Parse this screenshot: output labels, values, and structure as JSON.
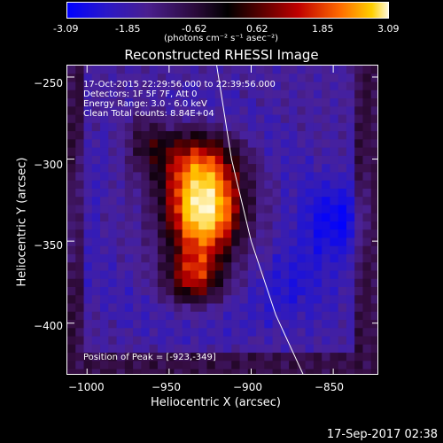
{
  "colorbar": {
    "ticks": [
      "-3.09",
      "-1.85",
      "-0.62",
      "0.62",
      "1.85",
      "3.09"
    ],
    "unit": "(photons cm⁻² s⁻¹ asec⁻²)"
  },
  "chart_data": {
    "type": "heatmap",
    "title": "Reconstructed RHESSI Image",
    "xlabel": "Heliocentric X (arcsec)",
    "ylabel": "Heliocentric Y (arcsec)",
    "xlim": [
      -1012,
      -822
    ],
    "ylim": [
      -432,
      -243
    ],
    "x_ticks": [
      -1000,
      -950,
      -900,
      -850
    ],
    "y_ticks": [
      -250,
      -300,
      -350,
      -400
    ],
    "x_tick_labels": [
      "−1000",
      "−950",
      "−900",
      "−850"
    ],
    "y_tick_labels": [
      "−250",
      "−300",
      "−350",
      "−400"
    ],
    "color_range": [
      -3.09,
      3.09
    ],
    "peak": [
      -923,
      -349
    ],
    "annotations": [
      "17-Oct-2015 22:29:56.000 to 22:39:56.000",
      "Detectors: 1F 5F 7F, Att 0",
      "Energy Range: 3.0 - 6.0 keV",
      "Clean    Total counts: 8.84E+04"
    ],
    "peak_label": "Position of Peak = [-923,-349]"
  },
  "footer": {
    "timestamp": "17-Sep-2017 02:38"
  }
}
